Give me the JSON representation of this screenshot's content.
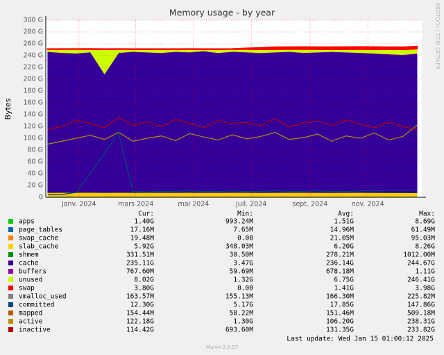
{
  "chart_data": {
    "type": "area",
    "title": "Memory usage - by year",
    "ylabel": "Bytes",
    "watermark": "RRDTOOL / TOBI OETIKER",
    "last_update": "Last update: Wed Jan 15 01:00:12 2025",
    "footer": "Munin 2.0.57",
    "legend_headers": [
      "Cur:",
      "Min:",
      "Avg:",
      "Max:"
    ],
    "grid": true,
    "x": [
      -33,
      -18,
      -3,
      12,
      27,
      42,
      57,
      72,
      87,
      102,
      117,
      132,
      147,
      162,
      177,
      192,
      207,
      222,
      237,
      252,
      267,
      282,
      297,
      312,
      327,
      342,
      357
    ],
    "xlim": [
      -35,
      362
    ],
    "xticks": [
      {
        "value": 0,
        "label": "janv. 2024"
      },
      {
        "value": 60,
        "label": "mars 2024"
      },
      {
        "value": 121,
        "label": "mai 2024"
      },
      {
        "value": 182,
        "label": "juil. 2024"
      },
      {
        "value": 244,
        "label": "sept. 2024"
      },
      {
        "value": 305,
        "label": "nov. 2024"
      }
    ],
    "ylim": [
      0,
      300
    ],
    "yticks": [
      0,
      {
        "value": 20,
        "label": "20 G"
      },
      {
        "value": 40,
        "label": "40 G"
      },
      {
        "value": 60,
        "label": "60 G"
      },
      {
        "value": 80,
        "label": "80 G"
      },
      {
        "value": 100,
        "label": "100 G"
      },
      {
        "value": 120,
        "label": "120 G"
      },
      {
        "value": 140,
        "label": "140 G"
      },
      {
        "value": 160,
        "label": "160 G"
      },
      {
        "value": 180,
        "label": "180 G"
      },
      {
        "value": 200,
        "label": "200 G"
      },
      {
        "value": 220,
        "label": "220 G"
      },
      {
        "value": 240,
        "label": "240 G"
      },
      {
        "value": 260,
        "label": "260 G"
      },
      {
        "value": 280,
        "label": "280 G"
      },
      {
        "value": 300,
        "label": "300 G"
      }
    ],
    "series": [
      {
        "name": "apps",
        "mode": "area",
        "color": "#00cc00",
        "cur": "1.40G",
        "min": "993.24M",
        "avg": "1.51G",
        "max": "8.69G",
        "values": [
          1.5,
          1.5,
          1.6,
          1.5,
          1.5,
          1.6,
          1.4,
          1.5,
          1.5,
          1.6,
          1.5,
          1.5,
          1.5,
          1.6,
          1.5,
          1.5,
          1.5,
          1.6,
          1.5,
          1.5,
          1.5,
          1.5,
          1.6,
          1.5,
          1.5,
          1.4,
          1.4
        ]
      },
      {
        "name": "page_tables",
        "mode": "area",
        "color": "#0066b3",
        "cur": "17.16M",
        "min": "7.65M",
        "avg": "14.96M",
        "max": "61.49M",
        "values": [
          0.015,
          0.015,
          0.015,
          0.015,
          0.015,
          0.015,
          0.015,
          0.015,
          0.015,
          0.015,
          0.015,
          0.015,
          0.015,
          0.015,
          0.015,
          0.015,
          0.015,
          0.015,
          0.015,
          0.015,
          0.015,
          0.015,
          0.015,
          0.015,
          0.015,
          0.017,
          0.017
        ]
      },
      {
        "name": "swap_cache",
        "mode": "area",
        "color": "#ff8000",
        "cur": "19.48M",
        "min": "0.00",
        "avg": "21.05M",
        "max": "95.03M",
        "values": [
          0.02,
          0.02,
          0.02,
          0.02,
          0.02,
          0.02,
          0.02,
          0.02,
          0.02,
          0.02,
          0.02,
          0.02,
          0.02,
          0.02,
          0.02,
          0.02,
          0.02,
          0.02,
          0.02,
          0.02,
          0.02,
          0.02,
          0.02,
          0.02,
          0.02,
          0.02,
          0.019
        ]
      },
      {
        "name": "slab_cache",
        "mode": "area",
        "color": "#ffcc00",
        "cur": "5.92G",
        "min": "348.03M",
        "avg": "6.20G",
        "max": "8.26G",
        "values": [
          6.2,
          6.3,
          6.2,
          6.4,
          6.1,
          6.2,
          6.3,
          6.2,
          6.2,
          6.1,
          6.3,
          6.2,
          6.2,
          6.2,
          6.3,
          6.1,
          6.2,
          6.2,
          6.3,
          6.2,
          6.1,
          6.2,
          6.2,
          6.1,
          6.0,
          6.0,
          5.9
        ]
      },
      {
        "name": "shmem",
        "mode": "area",
        "color": "#008f00",
        "cur": "331.51M",
        "min": "30.50M",
        "avg": "278.21M",
        "max": "1012.00M",
        "values": [
          0.28,
          0.28,
          0.28,
          0.28,
          0.28,
          0.28,
          0.28,
          0.28,
          0.28,
          0.28,
          0.28,
          0.28,
          0.28,
          0.28,
          0.28,
          0.28,
          0.28,
          0.28,
          0.28,
          0.28,
          0.28,
          0.28,
          0.28,
          0.28,
          0.3,
          0.32,
          0.33
        ]
      },
      {
        "name": "cache",
        "mode": "area",
        "color": "#330099",
        "cur": "235.11G",
        "min": "3.47G",
        "avg": "236.14G",
        "max": "244.67G",
        "values": [
          238,
          236,
          235,
          237,
          200,
          236,
          238,
          237,
          236,
          238,
          237,
          239,
          236,
          238,
          237,
          236,
          237,
          238,
          236,
          237,
          238,
          237,
          236,
          235,
          234,
          233,
          235.1
        ]
      },
      {
        "name": "buffers",
        "mode": "area",
        "color": "#990099",
        "cur": "767.60M",
        "min": "59.69M",
        "avg": "678.18M",
        "max": "1.11G",
        "values": [
          0.7,
          0.7,
          0.7,
          0.7,
          0.7,
          0.7,
          0.7,
          0.7,
          0.7,
          0.7,
          0.7,
          0.7,
          0.7,
          0.7,
          0.7,
          0.7,
          0.7,
          0.7,
          0.7,
          0.7,
          0.7,
          0.7,
          0.7,
          0.7,
          0.7,
          0.75,
          0.77
        ]
      },
      {
        "name": "unused",
        "mode": "area",
        "color": "#ccff00",
        "cur": "8.02G",
        "min": "1.32G",
        "avg": "6.75G",
        "max": "246.41G",
        "values": [
          4,
          6,
          7,
          5,
          42,
          6,
          4,
          5,
          6,
          4,
          5,
          3,
          6,
          4,
          5,
          6,
          5,
          4,
          6,
          5,
          4,
          5,
          6,
          7,
          8,
          9,
          8.0
        ]
      },
      {
        "name": "swap",
        "mode": "area",
        "color": "#ff0000",
        "cur": "3.80G",
        "min": "0.00",
        "avg": "1.41G",
        "max": "3.98G",
        "values": [
          0.5,
          0.5,
          0.5,
          0.5,
          0.5,
          0.5,
          0.5,
          0.5,
          0.5,
          0.5,
          0.5,
          0.5,
          0.5,
          0.5,
          1.5,
          2.5,
          3.5,
          3.6,
          3.7,
          3.7,
          3.8,
          3.8,
          3.9,
          3.9,
          3.8,
          3.8,
          3.8
        ]
      },
      {
        "name": "vmalloc_used",
        "mode": "line",
        "color": "#808080",
        "cur": "163.57M",
        "min": "155.13M",
        "avg": "166.30M",
        "max": "225.82M",
        "values": [
          0.16,
          0.16,
          0.16,
          0.16,
          0.16,
          0.16,
          0.16,
          0.16,
          0.16,
          0.16,
          0.16,
          0.16,
          0.16,
          0.16,
          0.16,
          0.16,
          0.16,
          0.16,
          0.16,
          0.16,
          0.16,
          0.16,
          0.16,
          0.16,
          0.16,
          0.16,
          0.164
        ]
      },
      {
        "name": "committed",
        "mode": "line",
        "color": "#00487d",
        "cur": "12.30G",
        "min": "5.17G",
        "avg": "17.85G",
        "max": "147.86G",
        "values": [
          5,
          5,
          8,
          40,
          75,
          108,
          10,
          9,
          10,
          10,
          11,
          10,
          10,
          11,
          10,
          10,
          11,
          10,
          10,
          11,
          10,
          10,
          11,
          11,
          12,
          12,
          12.3
        ]
      },
      {
        "name": "mapped",
        "mode": "line",
        "color": "#b35a00",
        "cur": "154.44M",
        "min": "58.22M",
        "avg": "151.46M",
        "max": "509.18M",
        "values": [
          0.15,
          0.15,
          0.15,
          0.15,
          0.15,
          0.15,
          0.15,
          0.15,
          0.15,
          0.15,
          0.15,
          0.15,
          0.15,
          0.15,
          0.15,
          0.15,
          0.15,
          0.15,
          0.15,
          0.15,
          0.15,
          0.15,
          0.15,
          0.15,
          0.15,
          0.15,
          0.154
        ]
      },
      {
        "name": "active",
        "mode": "line",
        "color": "#b38f00",
        "cur": "122.18G",
        "min": "1.30G",
        "avg": "106.20G",
        "max": "238.31G",
        "values": [
          90,
          95,
          100,
          105,
          98,
          110,
          95,
          100,
          104,
          96,
          108,
          102,
          97,
          106,
          99,
          103,
          110,
          98,
          101,
          107,
          95,
          104,
          100,
          109,
          97,
          103,
          122.2
        ]
      },
      {
        "name": "inactive",
        "mode": "line",
        "color": "#b30000",
        "cur": "114.42G",
        "min": "693.60M",
        "avg": "131.35G",
        "max": "233.82G",
        "values": [
          115,
          120,
          130,
          125,
          118,
          135,
          122,
          128,
          120,
          132,
          125,
          118,
          130,
          124,
          127,
          121,
          133,
          119,
          126,
          129,
          122,
          131,
          124,
          118,
          127,
          120,
          114.4
        ]
      }
    ]
  }
}
